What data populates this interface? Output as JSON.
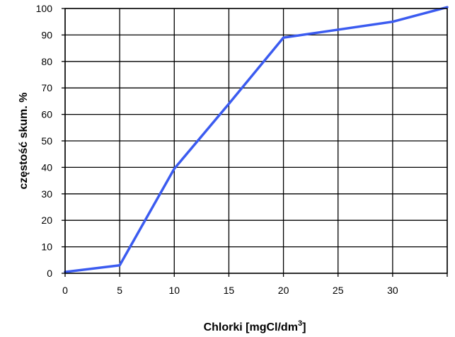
{
  "chart_data": {
    "type": "line",
    "xlabel": "Chlorki [mgCl/dm",
    "xlabel_superscript": "3",
    "xlabel_suffix": "]",
    "ylabel": "częstość skum. %",
    "xlim": [
      0,
      35
    ],
    "ylim": [
      0,
      100
    ],
    "xticks": [
      0,
      5,
      10,
      15,
      20,
      25,
      30
    ],
    "xgrid": [
      0,
      5,
      10,
      15,
      20,
      25,
      30,
      35
    ],
    "yticks": [
      0,
      10,
      20,
      30,
      40,
      50,
      60,
      70,
      80,
      90,
      100
    ],
    "grid": true,
    "series": [
      {
        "color": "#3b5bf0",
        "x": [
          0,
          5,
          10,
          15,
          20,
          25,
          30,
          35
        ],
        "y": [
          0.5,
          3,
          39.5,
          64,
          89,
          92,
          95,
          100.5
        ]
      }
    ]
  }
}
